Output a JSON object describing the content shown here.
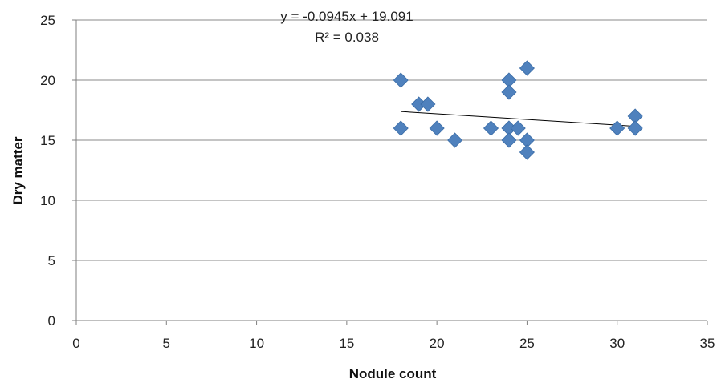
{
  "chart_data": {
    "type": "scatter",
    "title": "",
    "xlabel": "Nodule count",
    "ylabel": "Dry matter",
    "xlim": [
      0,
      35
    ],
    "ylim": [
      0,
      25
    ],
    "xticks": [
      "0",
      "5",
      "10",
      "15",
      "20",
      "25",
      "30",
      "35"
    ],
    "yticks": [
      "0",
      "5",
      "10",
      "15",
      "20",
      "25"
    ],
    "grid": "horizontal",
    "legend": "none",
    "series": [
      {
        "points": [
          [
            18,
            20
          ],
          [
            18,
            16
          ],
          [
            19,
            18
          ],
          [
            19.5,
            18
          ],
          [
            20,
            16
          ],
          [
            21,
            15
          ],
          [
            23,
            16
          ],
          [
            24,
            20
          ],
          [
            24,
            19
          ],
          [
            24,
            16
          ],
          [
            24,
            15
          ],
          [
            24.5,
            16
          ],
          [
            25,
            21
          ],
          [
            25,
            15
          ],
          [
            25,
            14
          ],
          [
            30,
            16
          ],
          [
            31,
            17
          ],
          [
            31,
            16
          ]
        ]
      }
    ],
    "trendline": {
      "slope": -0.0945,
      "intercept": 19.091,
      "x_range": [
        18,
        31
      ],
      "equation": "y = -0.0945x + 19.091",
      "r2": "R² = 0.038"
    },
    "colors": {
      "marker": "#4F81BD",
      "marker_edge": "#3A6CA6",
      "gridline": "#8A8A8A",
      "axis": "#7F7F7F",
      "trendline": "#000000"
    }
  }
}
